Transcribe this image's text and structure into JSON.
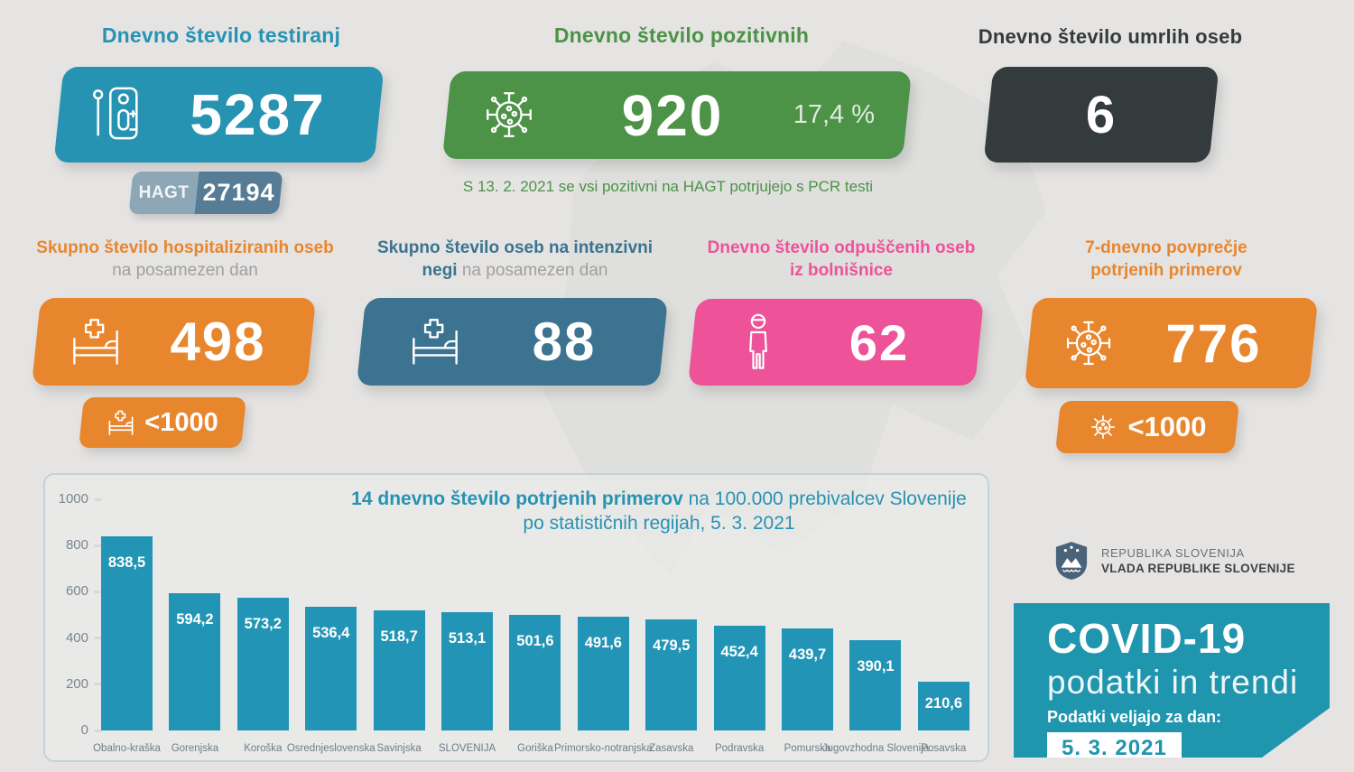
{
  "header_cards": {
    "tests": {
      "title": "Dnevno število testiranj",
      "value": "5287",
      "hagt_label": "HAGT",
      "hagt_value": "27194"
    },
    "positive": {
      "title": "Dnevno število pozitivnih",
      "value": "920",
      "percent": "17,4 %",
      "note": "S 13. 2. 2021 se vsi pozitivni na HAGT potrjujejo s PCR testi"
    },
    "deaths": {
      "title": "Dnevno število umrlih oseb",
      "value": "6"
    }
  },
  "mid_cards": {
    "hospitalized": {
      "title_main": "Skupno število hospitaliziranih oseb",
      "title_sub": "na posamezen dan",
      "value": "498",
      "badge": "<1000"
    },
    "icu": {
      "title_main": "Skupno število oseb na intenzivni negi",
      "title_sub": "na posamezen dan",
      "value": "88"
    },
    "discharged": {
      "title_main": "Dnevno število odpuščenih oseb iz bolnišnice",
      "value": "62"
    },
    "week_avg": {
      "title_main": "7-dnevno povprečje potrjenih primerov",
      "value": "776",
      "badge": "<1000"
    }
  },
  "chart_data": {
    "type": "bar",
    "title_bold": "14 dnevno število potrjenih primerov",
    "title_rest": " na 100.000 prebivalcev Slovenije po statističnih regijah, 5. 3. 2021",
    "categories": [
      "Obalno-kraška",
      "Gorenjska",
      "Koroška",
      "Osrednjeslovenska",
      "Savinjska",
      "SLOVENIJA",
      "Goriška",
      "Primorsko-notranjska",
      "Zasavska",
      "Podravska",
      "Pomurska",
      "Jugovzhodna Slovenija",
      "Posavska"
    ],
    "values": [
      838.5,
      594.2,
      573.2,
      536.4,
      518.7,
      513.1,
      501.6,
      491.6,
      479.5,
      452.4,
      439.7,
      390.1,
      210.6
    ],
    "value_labels": [
      "838,5",
      "594,2",
      "573,2",
      "536,4",
      "518,7",
      "513,1",
      "501,6",
      "491,6",
      "479,5",
      "452,4",
      "439,7",
      "390,1",
      "210,6"
    ],
    "ylim": [
      0,
      1000
    ],
    "yticks": [
      1000,
      800,
      600,
      400,
      200,
      0
    ],
    "grid": false,
    "legend": "none",
    "bar_color": "#2295b6"
  },
  "footer": {
    "gov_line1": "REPUBLIKA SLOVENIJA",
    "gov_line2": "VLADA REPUBLIKE SLOVENIJE",
    "covid_title": "COVID-19",
    "covid_subtitle": "podatki in trendi",
    "date_label": "Podatki veljajo za dan:",
    "date_value": "5. 3. 2021"
  },
  "colors": {
    "teal": "#2793b3",
    "green": "#4c9247",
    "dark": "#343b3d",
    "orange": "#e8862d",
    "steel_blue": "#3b7390",
    "pink": "#ee5298",
    "bar": "#2295b6",
    "covid_panel": "#2095ae",
    "hagt_left": "#8ea7b6",
    "hagt_right": "#567d95",
    "background": "#e5e4e3"
  }
}
